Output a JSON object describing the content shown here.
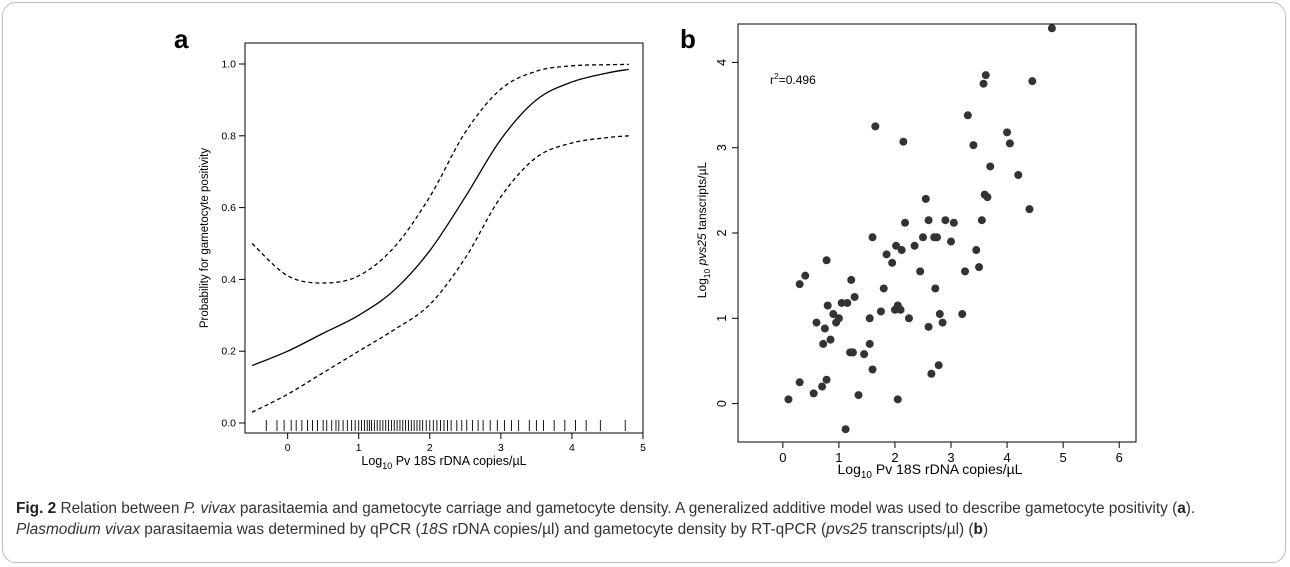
{
  "panels": {
    "a": {
      "letter": "a",
      "chart_data": {
        "type": "line",
        "xlabel_prefix": "Log",
        "xlabel_sub": "10",
        "xlabel_rest": " Pv 18S rDNA copies/µL",
        "ylabel": "Probability for gametocyte positivity",
        "xlim": [
          -0.6,
          5
        ],
        "ylim": [
          0,
          1.0
        ],
        "xticks": [
          "0",
          "1",
          "2",
          "3",
          "4",
          "5"
        ],
        "yticks": [
          "0.0",
          "0.2",
          "0.4",
          "0.6",
          "0.8",
          "1.0"
        ],
        "series": [
          {
            "style": "solid",
            "x": [
              -0.5,
              0,
              0.5,
              1.0,
              1.5,
              2.0,
              2.5,
              3.0,
              3.5,
              4.0,
              4.5,
              4.8
            ],
            "y": [
              0.16,
              0.2,
              0.25,
              0.3,
              0.37,
              0.48,
              0.63,
              0.79,
              0.9,
              0.95,
              0.975,
              0.985
            ]
          },
          {
            "style": "dashed",
            "x": [
              -0.5,
              0,
              0.5,
              1.0,
              1.5,
              2.0,
              2.5,
              3.0,
              3.5,
              4.0,
              4.5,
              4.8
            ],
            "y": [
              0.5,
              0.41,
              0.39,
              0.41,
              0.49,
              0.63,
              0.81,
              0.93,
              0.98,
              0.995,
              0.998,
              0.999
            ]
          },
          {
            "style": "dashed",
            "x": [
              -0.5,
              0,
              0.5,
              1.0,
              1.5,
              2.0,
              2.5,
              3.0,
              3.5,
              4.0,
              4.5,
              4.8
            ],
            "y": [
              0.03,
              0.08,
              0.14,
              0.2,
              0.26,
              0.33,
              0.46,
              0.63,
              0.74,
              0.78,
              0.795,
              0.8
            ]
          }
        ],
        "rug": [
          -0.3,
          -0.15,
          -0.05,
          0.05,
          0.12,
          0.2,
          0.28,
          0.35,
          0.42,
          0.5,
          0.55,
          0.62,
          0.68,
          0.72,
          0.78,
          0.84,
          0.9,
          0.95,
          1.0,
          1.04,
          1.08,
          1.12,
          1.15,
          1.18,
          1.22,
          1.26,
          1.3,
          1.34,
          1.38,
          1.42,
          1.46,
          1.5,
          1.54,
          1.58,
          1.62,
          1.66,
          1.7,
          1.74,
          1.78,
          1.82,
          1.86,
          1.9,
          1.95,
          2.0,
          2.05,
          2.1,
          2.15,
          2.2,
          2.25,
          2.3,
          2.38,
          2.45,
          2.52,
          2.6,
          2.68,
          2.75,
          2.85,
          2.95,
          3.05,
          3.15,
          3.25,
          3.4,
          3.5,
          3.6,
          3.75,
          3.9,
          4.05,
          4.2,
          4.4,
          4.75
        ]
      }
    },
    "b": {
      "letter": "b",
      "chart_data": {
        "type": "scatter",
        "annotation_prefix": "r",
        "annotation_sup": "2",
        "annotation_rest": "=0.496",
        "xlabel_prefix": "Log",
        "xlabel_sub": "10",
        "xlabel_rest": " Pv 18S rDNA copies/µL",
        "ylabel_prefix": "Log",
        "ylabel_sub": "10",
        "ylabel_italic": " pvs25",
        "ylabel_rest": " tanscripts/µL",
        "xlim": [
          -0.8,
          6.3
        ],
        "ylim": [
          -0.45,
          4.45
        ],
        "xticks": [
          "0",
          "1",
          "2",
          "3",
          "4",
          "5",
          "6"
        ],
        "yticks": [
          "0",
          "1",
          "2",
          "3",
          "4"
        ],
        "points": [
          [
            0.1,
            0.05
          ],
          [
            0.3,
            0.25
          ],
          [
            0.3,
            1.4
          ],
          [
            0.4,
            1.5
          ],
          [
            0.55,
            0.12
          ],
          [
            0.6,
            0.95
          ],
          [
            0.7,
            0.2
          ],
          [
            0.72,
            0.7
          ],
          [
            0.75,
            0.88
          ],
          [
            0.78,
            0.28
          ],
          [
            0.78,
            1.68
          ],
          [
            0.8,
            1.15
          ],
          [
            0.85,
            0.75
          ],
          [
            0.9,
            1.05
          ],
          [
            0.95,
            0.95
          ],
          [
            1.0,
            1.0
          ],
          [
            1.05,
            1.18
          ],
          [
            1.12,
            -0.3
          ],
          [
            1.15,
            1.18
          ],
          [
            1.2,
            0.6
          ],
          [
            1.22,
            1.45
          ],
          [
            1.25,
            0.6
          ],
          [
            1.28,
            1.25
          ],
          [
            1.35,
            0.1
          ],
          [
            1.45,
            0.58
          ],
          [
            1.55,
            0.7
          ],
          [
            1.55,
            1.0
          ],
          [
            1.6,
            0.4
          ],
          [
            1.6,
            1.95
          ],
          [
            1.65,
            3.25
          ],
          [
            1.75,
            1.08
          ],
          [
            1.8,
            1.35
          ],
          [
            1.85,
            1.75
          ],
          [
            1.95,
            1.65
          ],
          [
            2.0,
            1.1
          ],
          [
            2.02,
            1.85
          ],
          [
            2.05,
            0.05
          ],
          [
            2.05,
            1.15
          ],
          [
            2.1,
            1.1
          ],
          [
            2.12,
            1.8
          ],
          [
            2.15,
            3.07
          ],
          [
            2.18,
            2.12
          ],
          [
            2.25,
            1.0
          ],
          [
            2.35,
            1.85
          ],
          [
            2.45,
            1.55
          ],
          [
            2.5,
            1.95
          ],
          [
            2.55,
            2.4
          ],
          [
            2.6,
            2.15
          ],
          [
            2.6,
            0.9
          ],
          [
            2.65,
            0.35
          ],
          [
            2.7,
            1.95
          ],
          [
            2.72,
            1.35
          ],
          [
            2.75,
            1.95
          ],
          [
            2.78,
            0.45
          ],
          [
            2.8,
            1.05
          ],
          [
            2.85,
            0.95
          ],
          [
            2.9,
            2.15
          ],
          [
            3.0,
            1.9
          ],
          [
            3.05,
            2.12
          ],
          [
            3.2,
            1.05
          ],
          [
            3.25,
            1.55
          ],
          [
            3.3,
            3.38
          ],
          [
            3.4,
            3.03
          ],
          [
            3.45,
            1.8
          ],
          [
            3.5,
            1.6
          ],
          [
            3.55,
            2.15
          ],
          [
            3.58,
            3.75
          ],
          [
            3.6,
            2.45
          ],
          [
            3.62,
            3.85
          ],
          [
            3.65,
            2.42
          ],
          [
            3.7,
            2.78
          ],
          [
            4.0,
            3.18
          ],
          [
            4.05,
            3.05
          ],
          [
            4.2,
            2.68
          ],
          [
            4.4,
            2.28
          ],
          [
            4.45,
            3.78
          ],
          [
            4.8,
            4.4
          ]
        ]
      }
    }
  },
  "caption": {
    "fig_label": "Fig. 2",
    "t1": " Relation between ",
    "i1": "P. vivax",
    "t2": " parasitaemia and gametocyte carriage and gametocyte density. A generalized additive model was used to describe gametocyte positivity (",
    "b1": "a",
    "t3": "). ",
    "i2": "Plasmodium vivax",
    "t4": " parasitaemia was determined by qPCR (",
    "i3": "18S",
    "t5": " rDNA copies/µl) and gametocyte density by RT-qPCR (",
    "i4": "pvs25",
    "t6": " transcripts/µl) (",
    "b2": "b",
    "t7": ")"
  }
}
